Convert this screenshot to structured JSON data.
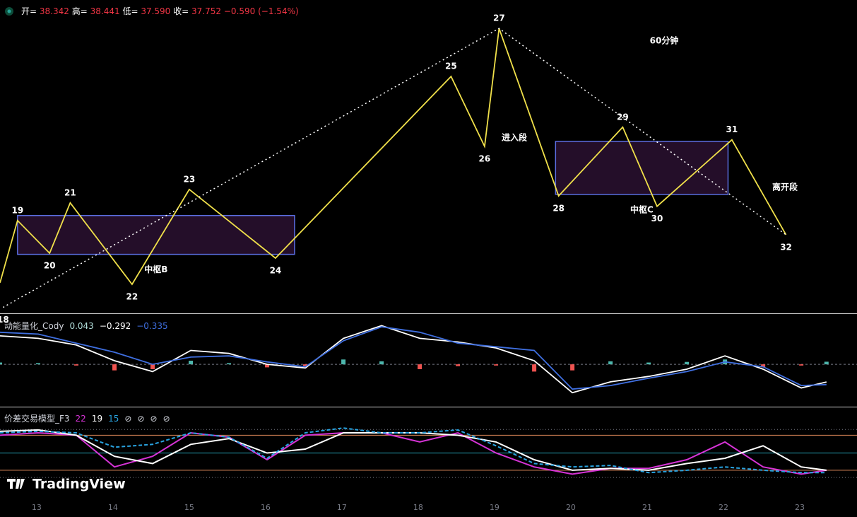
{
  "header": {
    "fields": [
      {
        "label": "开=",
        "value": "38.342"
      },
      {
        "label": "高=",
        "value": "38.441"
      },
      {
        "label": "低=",
        "value": "37.590"
      },
      {
        "label": "收=",
        "value": "37.752"
      }
    ],
    "change": "−0.590",
    "change_pct": "(−1.54%)"
  },
  "watermark": "TradingView",
  "chart_data": [
    {
      "type": "line",
      "title": "60分钟",
      "xlim": [
        12.52,
        23.75
      ],
      "ylim": [
        35.58,
        43.68
      ],
      "series": [
        {
          "name": "zigzag",
          "color": "#f0e04a",
          "style": "solid",
          "x": [
            12.52,
            12.75,
            13.17,
            13.44,
            14.25,
            15.0,
            16.13,
            18.43,
            18.87,
            19.06,
            19.84,
            20.68,
            21.13,
            22.11,
            22.82
          ],
          "values": [
            36.32,
            37.94,
            37.09,
            38.4,
            36.28,
            38.75,
            36.96,
            41.69,
            39.87,
            42.94,
            38.58,
            40.37,
            38.31,
            40.04,
            37.57
          ],
          "point_labels": [
            null,
            "19",
            "20",
            "21",
            "22",
            "23",
            "24",
            "25",
            "26",
            "27",
            "28",
            "29",
            "30",
            "31",
            "32"
          ]
        },
        {
          "name": "trend",
          "color": "#ffffff",
          "style": "dotted",
          "x": [
            12.56,
            19.06,
            22.82
          ],
          "values": [
            35.68,
            42.94,
            37.57
          ],
          "point_labels": [
            "18",
            null,
            null
          ]
        }
      ],
      "zones": [
        {
          "name": "中枢B",
          "x": [
            12.75,
            16.38
          ],
          "y": [
            37.06,
            38.07
          ]
        },
        {
          "name": "中枢C",
          "x": [
            19.8,
            22.06
          ],
          "y": [
            38.62,
            40.0
          ]
        }
      ],
      "zone_color": "#5b6ee1",
      "zone_fill": "#2a1030",
      "annotations": [
        "进入段",
        "离开段"
      ]
    },
    {
      "type": "macd",
      "title": "动能量化_Cody",
      "xlim": [
        12.52,
        23.75
      ],
      "ylim": [
        -0.7,
        0.82
      ],
      "levels": [
        0
      ],
      "legend_values": [
        "0.043",
        "−0.292",
        "−0.335"
      ],
      "x": [
        12.52,
        13.02,
        13.52,
        14.02,
        14.52,
        15.02,
        15.52,
        16.02,
        16.52,
        17.02,
        17.52,
        18.02,
        18.52,
        19.02,
        19.52,
        20.02,
        20.52,
        21.02,
        21.52,
        22.02,
        22.52,
        23.02,
        23.35
      ],
      "histogram": {
        "values": [
          0.03,
          0.02,
          -0.02,
          -0.1,
          -0.08,
          0.06,
          0.02,
          -0.05,
          -0.06,
          0.08,
          0.05,
          -0.08,
          -0.03,
          -0.02,
          -0.12,
          -0.1,
          0.05,
          0.03,
          0.04,
          0.08,
          -0.05,
          -0.02,
          0.043
        ],
        "up_color": "#4db6ac",
        "down_color": "#ef5350",
        "color": "#b2dfdb"
      },
      "series": [
        {
          "name": "DIF",
          "color": "#ffffff",
          "values": [
            0.47,
            0.43,
            0.32,
            0.06,
            -0.12,
            0.23,
            0.18,
            0.0,
            -0.06,
            0.43,
            0.64,
            0.43,
            0.37,
            0.27,
            0.06,
            -0.47,
            -0.29,
            -0.2,
            -0.08,
            0.14,
            -0.08,
            -0.39,
            -0.292
          ]
        },
        {
          "name": "DEA",
          "color": "#3f6fe0",
          "values": [
            0.53,
            0.5,
            0.35,
            0.2,
            0.0,
            0.12,
            0.14,
            0.04,
            -0.04,
            0.39,
            0.62,
            0.53,
            0.35,
            0.29,
            0.23,
            -0.41,
            -0.35,
            -0.23,
            -0.12,
            0.04,
            -0.04,
            -0.35,
            -0.335
          ]
        }
      ]
    },
    {
      "type": "oscillator",
      "title": "价差交易模型_F3",
      "xlim": [
        12.52,
        23.75
      ],
      "ylim": [
        -44,
        143
      ],
      "levels": [
        {
          "value": 88,
          "color": "#e0895a"
        },
        {
          "value": 51,
          "color": "#26a6b8"
        },
        {
          "value": 15,
          "color": "#e0895a"
        }
      ],
      "dotted_levels": [
        100,
        0
      ],
      "legend_icons": [
        "⊘",
        "⊘",
        "⊘",
        "⊘"
      ],
      "x": [
        12.52,
        13.02,
        13.52,
        14.02,
        14.52,
        15.02,
        15.52,
        16.02,
        16.52,
        17.02,
        17.52,
        18.02,
        18.52,
        19.02,
        19.52,
        20.02,
        20.52,
        21.02,
        21.52,
        22.02,
        22.52,
        23.02,
        23.35
      ],
      "series": [
        {
          "name": "22",
          "color": "#d633d6",
          "style": "solid",
          "values": [
            88,
            93,
            88,
            22,
            44,
            93,
            84,
            37,
            88,
            93,
            93,
            74,
            93,
            51,
            22,
            7,
            19,
            19,
            37,
            74,
            22,
            7,
            15
          ]
        },
        {
          "name": "19",
          "color": "#ffffff",
          "style": "solid",
          "values": [
            96,
            99,
            88,
            44,
            29,
            69,
            81,
            51,
            59,
            93,
            93,
            93,
            88,
            74,
            37,
            15,
            19,
            15,
            29,
            40,
            66,
            22,
            15
          ]
        },
        {
          "name": "15",
          "color": "#29a3e0",
          "style": "dashed",
          "values": [
            93,
            96,
            93,
            63,
            69,
            93,
            84,
            40,
            93,
            103,
            93,
            93,
            99,
            66,
            29,
            22,
            25,
            10,
            15,
            22,
            15,
            10,
            10
          ]
        }
      ],
      "xticks": [
        13,
        14,
        15,
        16,
        17,
        18,
        19,
        20,
        21,
        22,
        23
      ]
    }
  ]
}
